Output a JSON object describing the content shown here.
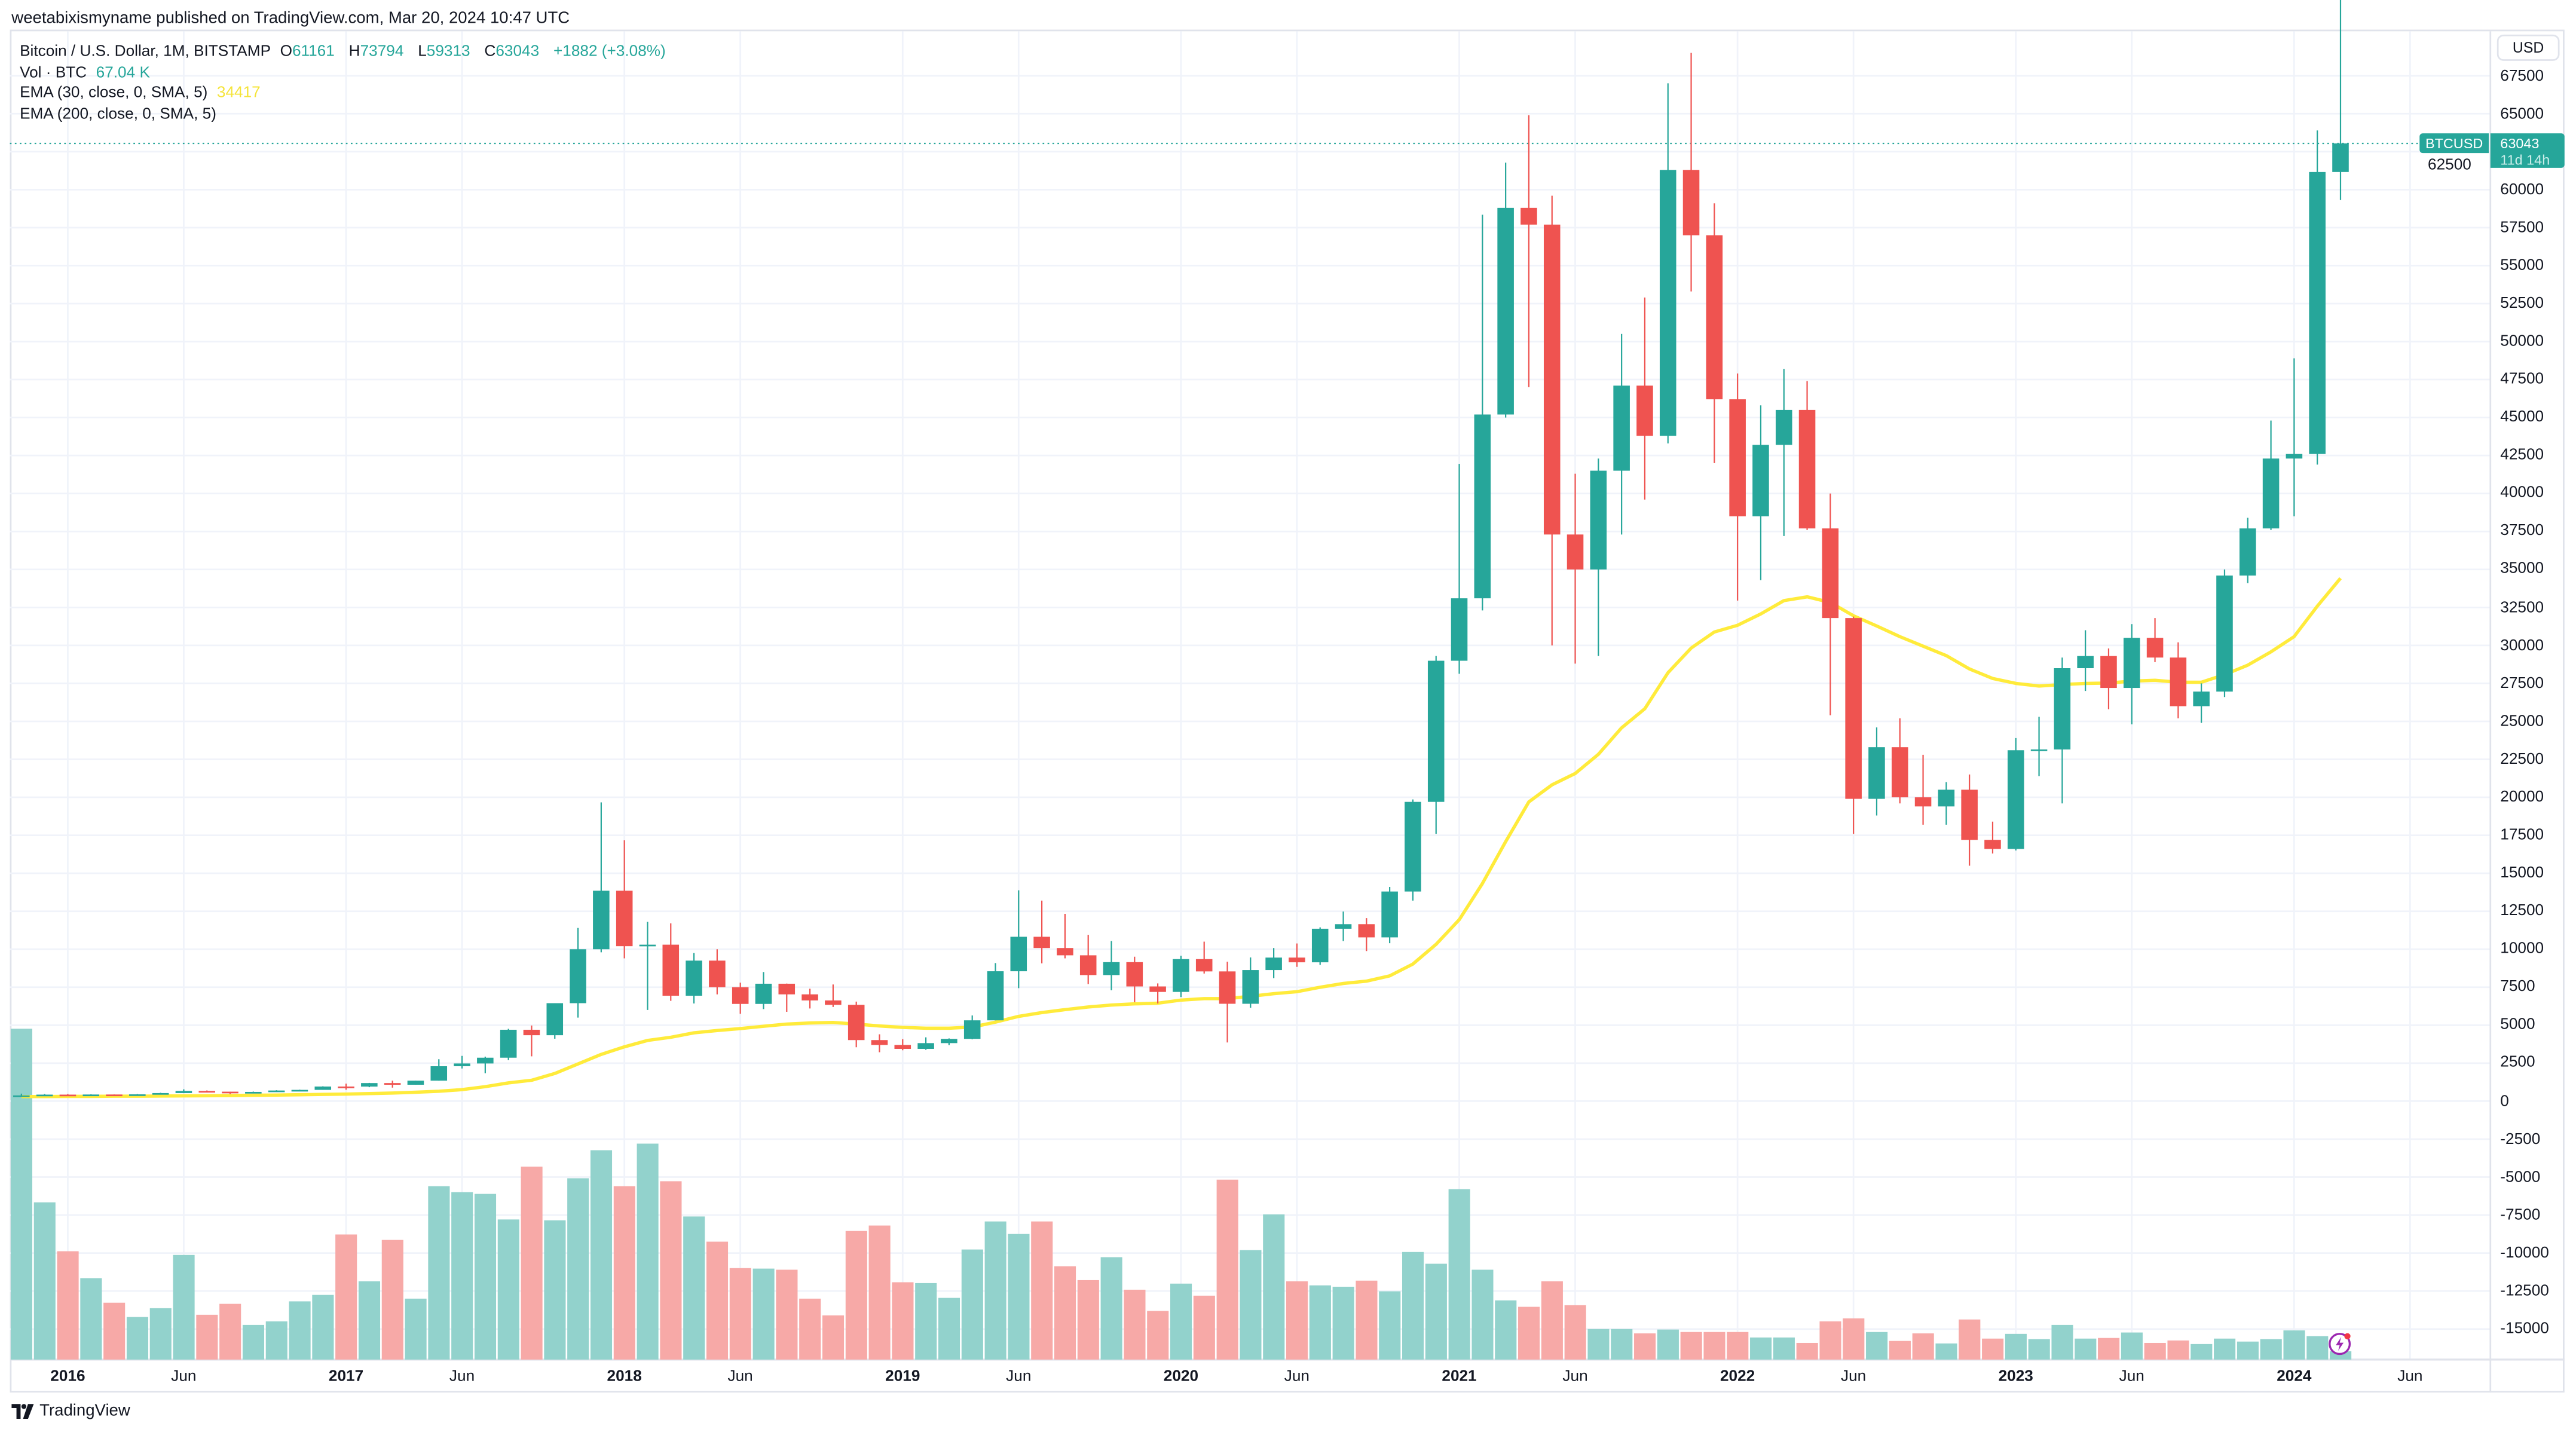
{
  "header": {
    "publisher": "weetabixismyname published on TradingView.com, Mar 20, 2024 10:47 UTC"
  },
  "legend": {
    "symbol": "Bitcoin / U.S. Dollar, 1M, BITSTAMP",
    "o_label": "O",
    "o": "61161",
    "h_label": "H",
    "h": "73794",
    "l_label": "L",
    "l": "59313",
    "c_label": "C",
    "c": "63043",
    "change": "+1882 (+3.08%)",
    "vol_label": "Vol · BTC",
    "vol": "67.04 K",
    "ema30_label": "EMA (30, close, 0, SMA, 5)",
    "ema30": "34417",
    "ema200_label": "EMA (200, close, 0, SMA, 5)"
  },
  "price_axis": {
    "currency": "USD",
    "symbol_tag": "BTCUSD",
    "last_price": "63043",
    "countdown": "11d 14h"
  },
  "footer": {
    "brand": "TradingView"
  },
  "colors": {
    "up": "#26a69a",
    "down": "#ef5350",
    "vol_up": "#92d2cc",
    "vol_down": "#f7a9a7",
    "ema30": "#ffeb3b",
    "grid": "#f0f3fa"
  },
  "icons": {
    "logo": "tradingview-logo-icon",
    "flash": "lightning-icon"
  },
  "chart_data": {
    "type": "candlestick",
    "title": "Bitcoin / U.S. Dollar, 1M, BITSTAMP",
    "grid": true,
    "ylim": [
      -15000,
      67500
    ],
    "y_ticks": [
      67500,
      65000,
      62500,
      60000,
      57500,
      55000,
      52500,
      50000,
      47500,
      45000,
      42500,
      40000,
      37500,
      35000,
      32500,
      30000,
      27500,
      25000,
      22500,
      20000,
      17500,
      15000,
      12500,
      10000,
      7500,
      5000,
      2500,
      0,
      -2500,
      -5000,
      -7500,
      -10000,
      -12500,
      -15000
    ],
    "x_ticks": [
      {
        "month": "2016-01",
        "label": "2016",
        "year": true
      },
      {
        "month": "2016-06",
        "label": "Jun"
      },
      {
        "month": "2017-01",
        "label": "2017",
        "year": true
      },
      {
        "month": "2017-06",
        "label": "Jun"
      },
      {
        "month": "2018-01",
        "label": "2018",
        "year": true
      },
      {
        "month": "2018-06",
        "label": "Jun"
      },
      {
        "month": "2019-01",
        "label": "2019",
        "year": true
      },
      {
        "month": "2019-06",
        "label": "Jun"
      },
      {
        "month": "2020-01",
        "label": "2020",
        "year": true
      },
      {
        "month": "2020-06",
        "label": "Jun"
      },
      {
        "month": "2021-01",
        "label": "2021",
        "year": true
      },
      {
        "month": "2021-06",
        "label": "Jun"
      },
      {
        "month": "2022-01",
        "label": "2022",
        "year": true
      },
      {
        "month": "2022-06",
        "label": "Jun"
      },
      {
        "month": "2023-01",
        "label": "2023",
        "year": true
      },
      {
        "month": "2023-06",
        "label": "Jun"
      },
      {
        "month": "2024-01",
        "label": "2024",
        "year": true
      },
      {
        "month": "2024-06",
        "label": "Jun"
      }
    ],
    "months": [
      "2015-11",
      "2015-12",
      "2016-01",
      "2016-02",
      "2016-03",
      "2016-04",
      "2016-05",
      "2016-06",
      "2016-07",
      "2016-08",
      "2016-09",
      "2016-10",
      "2016-11",
      "2016-12",
      "2017-01",
      "2017-02",
      "2017-03",
      "2017-04",
      "2017-05",
      "2017-06",
      "2017-07",
      "2017-08",
      "2017-09",
      "2017-10",
      "2017-11",
      "2017-12",
      "2018-01",
      "2018-02",
      "2018-03",
      "2018-04",
      "2018-05",
      "2018-06",
      "2018-07",
      "2018-08",
      "2018-09",
      "2018-10",
      "2018-11",
      "2018-12",
      "2019-01",
      "2019-02",
      "2019-03",
      "2019-04",
      "2019-05",
      "2019-06",
      "2019-07",
      "2019-08",
      "2019-09",
      "2019-10",
      "2019-11",
      "2019-12",
      "2020-01",
      "2020-02",
      "2020-03",
      "2020-04",
      "2020-05",
      "2020-06",
      "2020-07",
      "2020-08",
      "2020-09",
      "2020-10",
      "2020-11",
      "2020-12",
      "2021-01",
      "2021-02",
      "2021-03",
      "2021-04",
      "2021-05",
      "2021-06",
      "2021-07",
      "2021-08",
      "2021-09",
      "2021-10",
      "2021-11",
      "2021-12",
      "2022-01",
      "2022-02",
      "2022-03",
      "2022-04",
      "2022-05",
      "2022-06",
      "2022-07",
      "2022-08",
      "2022-09",
      "2022-10",
      "2022-11",
      "2022-12",
      "2023-01",
      "2023-02",
      "2023-03",
      "2023-04",
      "2023-05",
      "2023-06",
      "2023-07",
      "2023-08",
      "2023-09",
      "2023-10",
      "2023-11",
      "2023-12",
      "2024-01",
      "2024-02",
      "2024-03"
    ],
    "ohlc": [
      [
        311,
        495,
        304,
        377
      ],
      [
        377,
        465,
        347,
        430
      ],
      [
        430,
        462,
        352,
        368
      ],
      [
        368,
        448,
        365,
        437
      ],
      [
        437,
        440,
        393,
        416
      ],
      [
        416,
        467,
        412,
        448
      ],
      [
        448,
        552,
        434,
        531
      ],
      [
        531,
        779,
        526,
        673
      ],
      [
        673,
        704,
        606,
        624
      ],
      [
        624,
        626,
        468,
        575
      ],
      [
        575,
        628,
        570,
        608
      ],
      [
        608,
        720,
        604,
        700
      ],
      [
        700,
        755,
        680,
        742
      ],
      [
        742,
        977,
        743,
        963
      ],
      [
        963,
        1153,
        752,
        960
      ],
      [
        960,
        1200,
        918,
        1190
      ],
      [
        1190,
        1350,
        890,
        1080
      ],
      [
        1080,
        1353,
        1078,
        1349
      ],
      [
        1349,
        2760,
        1348,
        2300
      ],
      [
        2300,
        2980,
        2150,
        2480
      ],
      [
        2480,
        2930,
        1840,
        2860
      ],
      [
        2860,
        4760,
        2700,
        4700
      ],
      [
        4700,
        4980,
        2950,
        4340
      ],
      [
        4340,
        6450,
        4110,
        6450
      ],
      [
        6450,
        11400,
        5500,
        10000
      ],
      [
        10000,
        19666,
        9800,
        13850
      ],
      [
        13850,
        17170,
        9400,
        10200
      ],
      [
        10200,
        11800,
        6000,
        10300
      ],
      [
        10300,
        11700,
        6600,
        6940
      ],
      [
        6940,
        9750,
        6430,
        9250
      ],
      [
        9250,
        10000,
        7030,
        7500
      ],
      [
        7500,
        7800,
        5750,
        6400
      ],
      [
        6400,
        8500,
        6060,
        7730
      ],
      [
        7730,
        7740,
        5880,
        7030
      ],
      [
        7030,
        7400,
        6100,
        6630
      ],
      [
        6630,
        7680,
        6200,
        6340
      ],
      [
        6340,
        6550,
        3550,
        4020
      ],
      [
        4020,
        4400,
        3220,
        3700
      ],
      [
        3700,
        4080,
        3350,
        3440
      ],
      [
        3440,
        4200,
        3380,
        3820
      ],
      [
        3820,
        4130,
        3690,
        4100
      ],
      [
        4100,
        5640,
        4070,
        5320
      ],
      [
        5320,
        9090,
        5320,
        8550
      ],
      [
        8550,
        13880,
        7440,
        10820
      ],
      [
        10820,
        13200,
        9070,
        10080
      ],
      [
        10080,
        12330,
        9400,
        9600
      ],
      [
        9600,
        10950,
        7710,
        8300
      ],
      [
        8300,
        10540,
        7300,
        9150
      ],
      [
        9150,
        9510,
        6515,
        7550
      ],
      [
        7550,
        7750,
        6430,
        7190
      ],
      [
        7190,
        9570,
        6850,
        9350
      ],
      [
        9350,
        10500,
        8400,
        8540
      ],
      [
        8540,
        9180,
        3860,
        6410
      ],
      [
        6410,
        9460,
        6150,
        8630
      ],
      [
        8630,
        10080,
        8100,
        9450
      ],
      [
        9450,
        10380,
        8840,
        9140
      ],
      [
        9140,
        11440,
        8970,
        11350
      ],
      [
        11350,
        12480,
        10540,
        11650
      ],
      [
        11650,
        12050,
        9880,
        10780
      ],
      [
        10780,
        14100,
        10400,
        13800
      ],
      [
        13800,
        19860,
        13200,
        19700
      ],
      [
        19700,
        29300,
        17600,
        28990
      ],
      [
        28990,
        41950,
        28130,
        33100
      ],
      [
        33100,
        58350,
        32300,
        45200
      ],
      [
        45200,
        61780,
        45000,
        58800
      ],
      [
        58800,
        64900,
        47000,
        57700
      ],
      [
        57700,
        59600,
        30000,
        37300
      ],
      [
        37300,
        41300,
        28800,
        35000
      ],
      [
        35000,
        42300,
        29300,
        41500
      ],
      [
        41500,
        50500,
        37300,
        47100
      ],
      [
        47100,
        52900,
        39600,
        43800
      ],
      [
        43800,
        67000,
        43300,
        61300
      ],
      [
        61300,
        69000,
        53300,
        57000
      ],
      [
        57000,
        59100,
        42000,
        46200
      ],
      [
        46200,
        47900,
        32950,
        38500
      ],
      [
        38500,
        45800,
        34300,
        43200
      ],
      [
        43200,
        48200,
        37200,
        45500
      ],
      [
        45500,
        47400,
        37600,
        37700
      ],
      [
        37700,
        40000,
        25400,
        31800
      ],
      [
        31800,
        31900,
        17600,
        19900
      ],
      [
        19900,
        24600,
        18800,
        23300
      ],
      [
        23300,
        25200,
        19600,
        20000
      ],
      [
        20000,
        22800,
        18200,
        19400
      ],
      [
        19400,
        21000,
        18200,
        20500
      ],
      [
        20500,
        21500,
        15500,
        17200
      ],
      [
        17200,
        18400,
        16300,
        16600
      ],
      [
        16600,
        23900,
        16500,
        23100
      ],
      [
        23100,
        25300,
        21400,
        23150
      ],
      [
        23150,
        29200,
        19600,
        28500
      ],
      [
        28500,
        31000,
        27000,
        29300
      ],
      [
        29300,
        29800,
        25800,
        27200
      ],
      [
        27200,
        31400,
        24800,
        30500
      ],
      [
        30500,
        31800,
        28900,
        29200
      ],
      [
        29200,
        30200,
        25200,
        26000
      ],
      [
        26000,
        27500,
        24900,
        26960
      ],
      [
        26960,
        35000,
        26600,
        34600
      ],
      [
        34600,
        38400,
        34100,
        37700
      ],
      [
        37700,
        44800,
        37600,
        42300
      ],
      [
        42300,
        48900,
        38500,
        42600
      ],
      [
        42600,
        63900,
        41900,
        61160
      ],
      [
        61161,
        73794,
        59313,
        63043
      ]
    ],
    "volume_k_btc": [
      2666,
      1267,
      873,
      656,
      458,
      343,
      414,
      843,
      361,
      449,
      279,
      308,
      469,
      521,
      1008,
      631,
      964,
      491,
      1397,
      1349,
      1335,
      1129,
      1555,
      1122,
      1461,
      1687,
      1397,
      1740,
      1437,
      1153,
      950,
      737,
      733,
      724,
      491,
      356,
      1036,
      1080,
      623,
      616,
      497,
      887,
      1113,
      1012,
      1113,
      752,
      640,
      825,
      563,
      392,
      612,
      515,
      1450,
      882,
      1170,
      631,
      598,
      587,
      636,
      550,
      867,
      772,
      1373,
      724,
      477,
      425,
      631,
      438,
      246,
      246,
      211,
      242,
      222,
      222,
      222,
      178,
      178,
      134,
      308,
      332,
      222,
      150,
      211,
      130,
      323,
      169,
      207,
      165,
      279,
      169,
      174,
      218,
      134,
      154,
      125,
      169,
      145,
      165,
      235,
      189,
      67.04
    ],
    "ema30": [
      300,
      305,
      310,
      315,
      320,
      330,
      340,
      350,
      360,
      370,
      385,
      400,
      420,
      440,
      465,
      495,
      530,
      580,
      650,
      760,
      950,
      1200,
      1375,
      1825,
      2450,
      3075,
      3575,
      4000,
      4200,
      4500,
      4650,
      4775,
      4925,
      5075,
      5150,
      5175,
      5075,
      4950,
      4850,
      4800,
      4800,
      4875,
      5200,
      5575,
      5825,
      6025,
      6200,
      6325,
      6400,
      6450,
      6650,
      6750,
      6750,
      6900,
      7075,
      7200,
      7500,
      7750,
      7900,
      8250,
      9025,
      10325,
      11950,
      14325,
      17075,
      19700,
      20825,
      21575,
      22825,
      24575,
      25825,
      28200,
      29825,
      30875,
      31325,
      32075,
      32950,
      33200,
      32825,
      31950,
      31275,
      30575,
      29950,
      29325,
      28450,
      27825,
      27500,
      27325,
      27425,
      27500,
      27525,
      27650,
      27700,
      27575,
      27575,
      28075,
      28700,
      29575,
      30575,
      32575,
      34417
    ]
  }
}
